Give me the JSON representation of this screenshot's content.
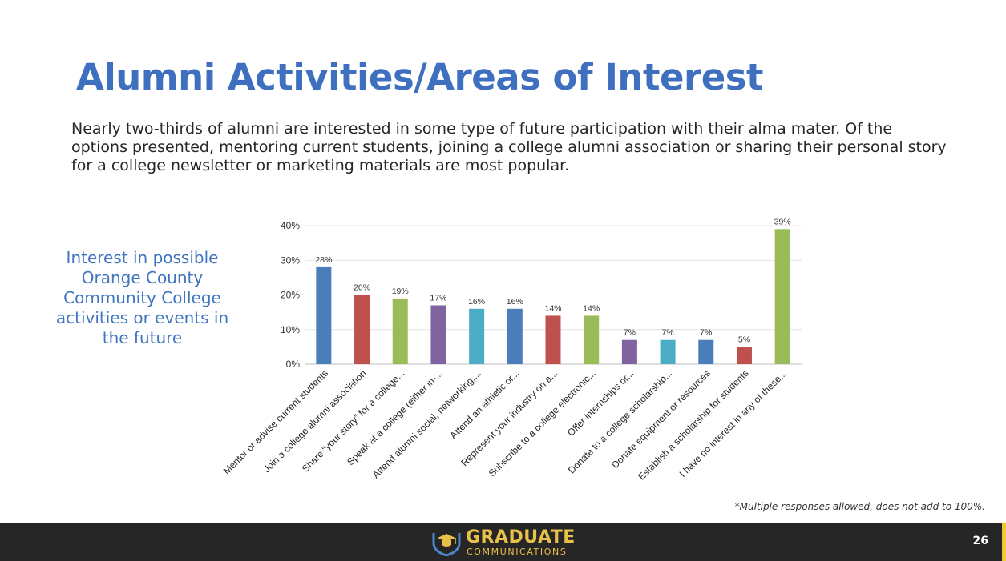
{
  "slide": {
    "title": "Alumni Activities/Areas of Interest",
    "summary": "Nearly two-thirds of alumni are interested in some type of future participation with their alma mater. Of the options presented, mentoring current students, joining a college alumni association or sharing their personal story for a college newsletter or marketing materials are most popular.",
    "side_caption": "Interest in possible Orange County Community College activities or events in the future",
    "footnote": "*Multiple responses allowed, does not add to 100%.",
    "page_number": "26"
  },
  "footer": {
    "logo_word": "GRADUATE",
    "logo_sub": "COMMUNICATIONS"
  },
  "chart_data": {
    "type": "bar",
    "categories": [
      "Mentor or advise current students",
      "Join a college alumni association",
      "Share “your story” for a college...",
      "Speak at a college (either in-...",
      "Attend alumni social, networking,...",
      "Attend an athletic or...",
      "Represent your industry on a...",
      "Subscribe to a college electronic...",
      "Offer internships or...",
      "Donate to a college scholarship...",
      "Donate equipment or resources",
      "Establish a scholarship for students",
      "I have no interest in any of these..."
    ],
    "values": [
      28,
      20,
      19,
      17,
      16,
      16,
      14,
      14,
      7,
      7,
      7,
      5,
      39
    ],
    "data_labels": [
      "28%",
      "20%",
      "19%",
      "17%",
      "16%",
      "16%",
      "14%",
      "14%",
      "7%",
      "7%",
      "7%",
      "5%",
      "39%"
    ],
    "bar_colors": [
      "#4a7ebb",
      "#c0504d",
      "#9bbb59",
      "#8064a2",
      "#4bacc6",
      "#4a7ebb",
      "#c0504d",
      "#9bbb59",
      "#8064a2",
      "#4bacc6",
      "#4a7ebb",
      "#c0504d",
      "#9bbb59"
    ],
    "y_ticks": [
      "0%",
      "10%",
      "20%",
      "30%",
      "40%"
    ],
    "y_tick_values": [
      0,
      10,
      20,
      30,
      40
    ],
    "ylim": [
      0,
      40
    ],
    "grid": true,
    "legend": "none"
  }
}
